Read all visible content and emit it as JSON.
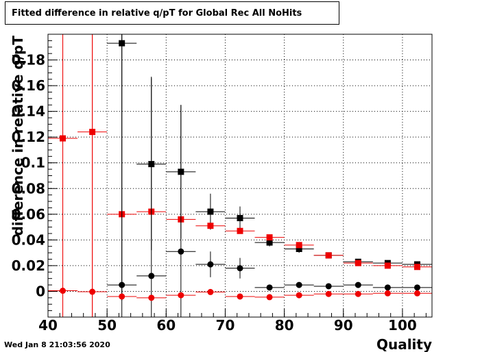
{
  "header": {
    "title": "Fitted difference in relative q/pT for Global Rec All NoHits"
  },
  "footer": {
    "timestamp": "Wed Jan  8 21:03:56 2020"
  },
  "chart_data": {
    "type": "scatter",
    "title": "Fitted difference in relative q/pT for Global Rec All NoHits",
    "xlabel": "Quality",
    "ylabel": "difference in relative q/pT",
    "xlim": [
      40,
      105
    ],
    "ylim": [
      -0.02,
      0.2
    ],
    "x_ticks": [
      40,
      50,
      60,
      70,
      80,
      90,
      100
    ],
    "x_tick_labels": [
      "40",
      "50",
      "60",
      "70",
      "80",
      "90",
      "100"
    ],
    "y_ticks": [
      0,
      0.02,
      0.04,
      0.06,
      0.08,
      0.1,
      0.12,
      0.14,
      0.16,
      0.18
    ],
    "y_tick_labels": [
      "0",
      "0.02",
      "0.04",
      "0.06",
      "0.08",
      "0.1",
      "0.12",
      "0.14",
      "0.16",
      "0.18"
    ],
    "grid": true,
    "x_bin_half_width": 2.5,
    "series": [
      {
        "marker": "square",
        "color": "#000000",
        "x": [
          52.5,
          57.5,
          62.5,
          67.5,
          72.5,
          77.5,
          82.5,
          87.5,
          92.5,
          97.5,
          102.5
        ],
        "y": [
          0.193,
          0.099,
          0.093,
          0.062,
          0.057,
          0.038,
          0.033,
          0.028,
          0.023,
          0.022,
          0.021
        ],
        "yerr": [
          0.2,
          0.067,
          0.052,
          0.014,
          0.009,
          0.003,
          0.003,
          0.002,
          0.002,
          0.002,
          0.002
        ]
      },
      {
        "marker": "square",
        "color": "#ee0000",
        "x": [
          42.5,
          47.5,
          52.5,
          57.5,
          62.5,
          67.5,
          72.5,
          77.5,
          82.5,
          87.5,
          92.5,
          97.5,
          102.5
        ],
        "y": [
          0.119,
          0.124,
          0.06,
          0.062,
          0.056,
          0.051,
          0.047,
          0.042,
          0.036,
          0.028,
          0.022,
          0.02,
          0.019
        ],
        "yerr": [
          0.2,
          0.2,
          0.002,
          0.002,
          0.002,
          0.002,
          0.002,
          0.001,
          0.001,
          0.001,
          0.001,
          0.001,
          0.001
        ]
      },
      {
        "marker": "circle",
        "color": "#000000",
        "x": [
          52.5,
          57.5,
          62.5,
          67.5,
          72.5,
          77.5,
          82.5,
          87.5,
          92.5,
          97.5,
          102.5
        ],
        "y": [
          0.005,
          0.012,
          0.031,
          0.021,
          0.018,
          0.003,
          0.005,
          0.004,
          0.005,
          0.003,
          0.003
        ],
        "yerr": [
          0.2,
          0.155,
          0.114,
          0.01,
          0.008,
          0.002,
          0.002,
          0.001,
          0.001,
          0.001,
          0.001
        ]
      },
      {
        "marker": "circle",
        "color": "#ee0000",
        "x": [
          42.5,
          47.5,
          52.5,
          57.5,
          62.5,
          67.5,
          72.5,
          77.5,
          82.5,
          87.5,
          92.5,
          97.5,
          102.5
        ],
        "y": [
          0.0005,
          -0.0003,
          -0.004,
          -0.005,
          -0.003,
          -0.0005,
          -0.004,
          -0.0045,
          -0.003,
          -0.002,
          -0.002,
          -0.0015,
          -0.0015
        ],
        "yerr": [
          0.2,
          0.2,
          0.001,
          0.001,
          0.001,
          0.001,
          0.001,
          0.001,
          0.0005,
          0.0005,
          0.0005,
          0.0005,
          0.0005
        ]
      }
    ]
  }
}
